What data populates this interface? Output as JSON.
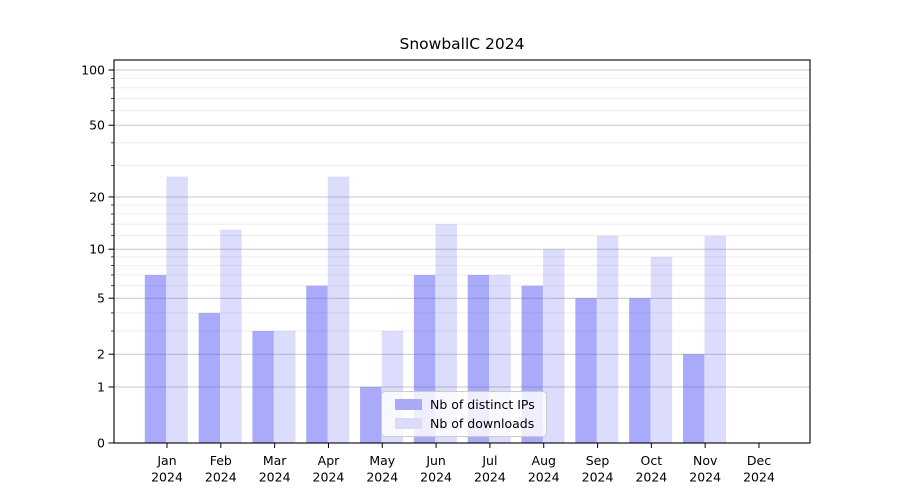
{
  "chart_data": {
    "type": "bar",
    "title": "SnowballC 2024",
    "categories": [
      "Jan 2024",
      "Feb 2024",
      "Mar 2024",
      "Apr 2024",
      "May 2024",
      "Jun 2024",
      "Jul 2024",
      "Aug 2024",
      "Sep 2024",
      "Oct 2024",
      "Nov 2024",
      "Dec 2024"
    ],
    "series": [
      {
        "name": "Nb of distinct IPs",
        "color": "#4646f5",
        "opacity": 0.46,
        "swatch_color": "#a9a9f6",
        "values": [
          7,
          4,
          3,
          6,
          1,
          7,
          7,
          6,
          5,
          5,
          2,
          0
        ]
      },
      {
        "name": "Nb of downloads",
        "color": "#4646f5",
        "opacity": 0.19,
        "swatch_color": "#dcdcf9",
        "values": [
          26,
          13,
          3,
          26,
          3,
          14,
          7,
          10,
          12,
          9,
          12,
          0
        ]
      }
    ],
    "yscale": "log1p",
    "ylim": [
      0,
      114
    ],
    "yticks": [
      0,
      1,
      2,
      5,
      10,
      20,
      50,
      100
    ],
    "minor_yticks": [
      3,
      4,
      6,
      7,
      8,
      9,
      12,
      14,
      16,
      18,
      30,
      40,
      60,
      70,
      80,
      90
    ],
    "xlabel": "",
    "ylabel": "",
    "grid": true,
    "legend_position": "lower center",
    "colors": {
      "major_grid": "#c9c9c9",
      "minor_grid": "#ebebeb",
      "spine": "#000000",
      "tick_text": "#000000"
    }
  }
}
